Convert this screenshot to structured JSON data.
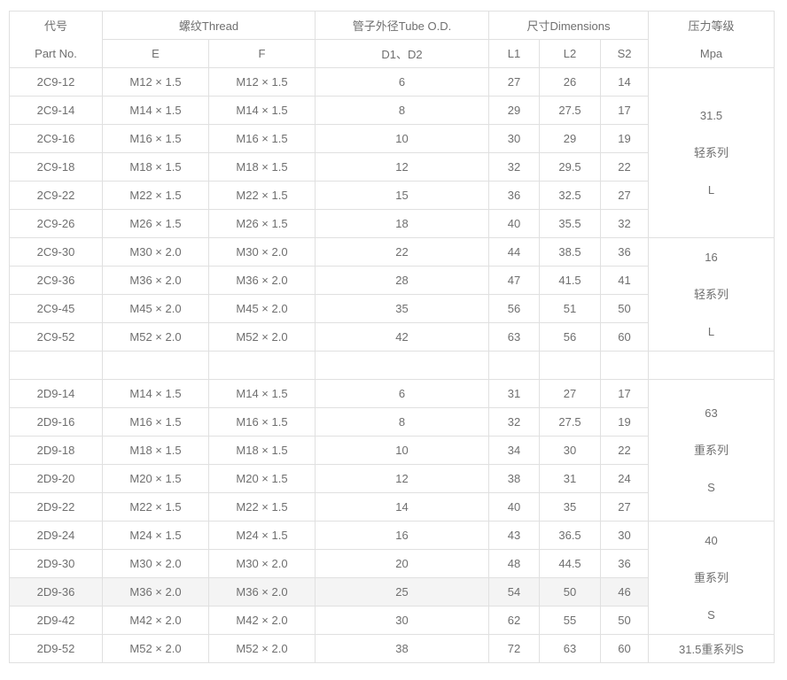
{
  "colors": {
    "text": "#6f6f6f",
    "border": "#e0e0e0",
    "row_highlight": "#f4f4f4"
  },
  "table": {
    "header": {
      "part_zh": "代号",
      "part_en": "Part No.",
      "thread": "螺纹Thread",
      "thread_e": "E",
      "thread_f": "F",
      "tube": "管子外径Tube O.D.",
      "tube_sub": "D1、D2",
      "dims": "尺寸Dimensions",
      "dims_l1": "L1",
      "dims_l2": "L2",
      "dims_s2": "S2",
      "pressure_zh": "压力等级",
      "pressure_en": "Mpa"
    },
    "highlight_row_index": 18,
    "rows": [
      {
        "part": "2C9-12",
        "e": "M12 × 1.5",
        "f": "M12 × 1.5",
        "d": "6",
        "l1": "27",
        "l2": "26",
        "s2": "14"
      },
      {
        "part": "2C9-14",
        "e": "M14 × 1.5",
        "f": "M14 × 1.5",
        "d": "8",
        "l1": "29",
        "l2": "27.5",
        "s2": "17"
      },
      {
        "part": "2C9-16",
        "e": "M16 × 1.5",
        "f": "M16 × 1.5",
        "d": "10",
        "l1": "30",
        "l2": "29",
        "s2": "19"
      },
      {
        "part": "2C9-18",
        "e": "M18 × 1.5",
        "f": "M18 × 1.5",
        "d": "12",
        "l1": "32",
        "l2": "29.5",
        "s2": "22"
      },
      {
        "part": "2C9-22",
        "e": "M22 × 1.5",
        "f": "M22 × 1.5",
        "d": "15",
        "l1": "36",
        "l2": "32.5",
        "s2": "27"
      },
      {
        "part": "2C9-26",
        "e": "M26 × 1.5",
        "f": "M26 × 1.5",
        "d": "18",
        "l1": "40",
        "l2": "35.5",
        "s2": "32"
      },
      {
        "part": "2C9-30",
        "e": "M30 × 2.0",
        "f": "M30 × 2.0",
        "d": "22",
        "l1": "44",
        "l2": "38.5",
        "s2": "36"
      },
      {
        "part": "2C9-36",
        "e": "M36 × 2.0",
        "f": "M36 × 2.0",
        "d": "28",
        "l1": "47",
        "l2": "41.5",
        "s2": "41"
      },
      {
        "part": "2C9-45",
        "e": "M45 × 2.0",
        "f": "M45 × 2.0",
        "d": "35",
        "l1": "56",
        "l2": "51",
        "s2": "50"
      },
      {
        "part": "2C9-52",
        "e": "M52 × 2.0",
        "f": "M52 × 2.0",
        "d": "42",
        "l1": "63",
        "l2": "56",
        "s2": "60"
      },
      {
        "part": "",
        "e": "",
        "f": "",
        "d": "",
        "l1": "",
        "l2": "",
        "s2": ""
      },
      {
        "part": "2D9-14",
        "e": "M14 × 1.5",
        "f": "M14 × 1.5",
        "d": "6",
        "l1": "31",
        "l2": "27",
        "s2": "17"
      },
      {
        "part": "2D9-16",
        "e": "M16 × 1.5",
        "f": "M16 × 1.5",
        "d": "8",
        "l1": "32",
        "l2": "27.5",
        "s2": "19"
      },
      {
        "part": "2D9-18",
        "e": "M18 × 1.5",
        "f": "M18 × 1.5",
        "d": "10",
        "l1": "34",
        "l2": "30",
        "s2": "22"
      },
      {
        "part": "2D9-20",
        "e": "M20 × 1.5",
        "f": "M20 × 1.5",
        "d": "12",
        "l1": "38",
        "l2": "31",
        "s2": "24"
      },
      {
        "part": "2D9-22",
        "e": "M22 × 1.5",
        "f": "M22 × 1.5",
        "d": "14",
        "l1": "40",
        "l2": "35",
        "s2": "27"
      },
      {
        "part": "2D9-24",
        "e": "M24 × 1.5",
        "f": "M24 × 1.5",
        "d": "16",
        "l1": "43",
        "l2": "36.5",
        "s2": "30"
      },
      {
        "part": "2D9-30",
        "e": "M30 × 2.0",
        "f": "M30 × 2.0",
        "d": "20",
        "l1": "48",
        "l2": "44.5",
        "s2": "36"
      },
      {
        "part": "2D9-36",
        "e": "M36 × 2.0",
        "f": "M36 × 2.0",
        "d": "25",
        "l1": "54",
        "l2": "50",
        "s2": "46"
      },
      {
        "part": "2D9-42",
        "e": "M42 × 2.0",
        "f": "M42 × 2.0",
        "d": "30",
        "l1": "62",
        "l2": "55",
        "s2": "50"
      },
      {
        "part": "2D9-52",
        "e": "M52 × 2.0",
        "f": "M52 × 2.0",
        "d": "38",
        "l1": "72",
        "l2": "63",
        "s2": "60"
      }
    ],
    "pressure_spans": [
      {
        "start": 0,
        "rows": 6,
        "lines": [
          "31.5",
          "轻系列",
          "L"
        ]
      },
      {
        "start": 6,
        "rows": 4,
        "lines": [
          "16",
          "轻系列",
          "L"
        ]
      },
      {
        "start": 10,
        "rows": 1,
        "lines": []
      },
      {
        "start": 11,
        "rows": 5,
        "lines": [
          "63",
          "重系列",
          "S"
        ]
      },
      {
        "start": 16,
        "rows": 4,
        "lines": [
          "40",
          "重系列",
          "S"
        ]
      },
      {
        "start": 20,
        "rows": 1,
        "lines": [
          "31.5重系列S"
        ]
      }
    ]
  }
}
